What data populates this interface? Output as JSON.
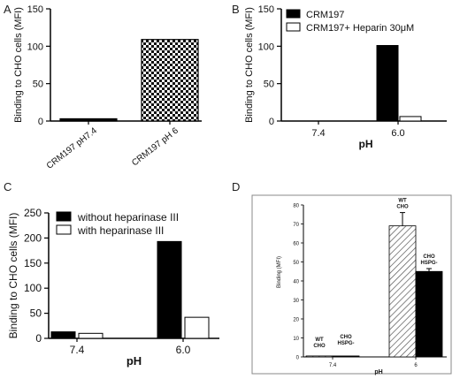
{
  "chart_data": [
    {
      "panel": "A",
      "type": "bar",
      "categories": [
        "CRM197 pH7.4",
        "CRM197 pH 6"
      ],
      "values": [
        3,
        109
      ],
      "ylabel": "Binding to CHO cells (MFI)",
      "ylim": [
        0,
        150
      ],
      "yticks": [
        0,
        50,
        100,
        150
      ],
      "fills": [
        "black",
        "checkerboard"
      ],
      "legend": null,
      "grid": false
    },
    {
      "panel": "B",
      "type": "bar",
      "categories": [
        "7.4",
        "6.0"
      ],
      "xlabel": "pH",
      "ylabel": "Binding to CHO cells (MFI)",
      "ylim": [
        0,
        150
      ],
      "yticks": [
        0,
        50,
        100,
        150
      ],
      "series": [
        {
          "name": "CRM197",
          "values": [
            0,
            101
          ],
          "color": "#000000"
        },
        {
          "name": "CRM197+ Heparin 30μM",
          "values": [
            0,
            6
          ],
          "color": "#ffffff"
        }
      ],
      "legend": "top-left",
      "grid": false
    },
    {
      "panel": "C",
      "type": "bar",
      "categories": [
        "7.4",
        "6.0"
      ],
      "xlabel": "pH",
      "ylabel": "Binding to CHO cells (MFI)",
      "ylim": [
        0,
        250
      ],
      "yticks": [
        0,
        50,
        100,
        150,
        200,
        250
      ],
      "series": [
        {
          "name": "without heparinase III",
          "values": [
            13,
            193
          ],
          "color": "#000000"
        },
        {
          "name": "with heparinase III",
          "values": [
            10,
            42
          ],
          "color": "#ffffff"
        }
      ],
      "legend": "top-left",
      "grid": false
    },
    {
      "panel": "D",
      "type": "bar",
      "categories": [
        "7.4",
        "6"
      ],
      "xlabel": "pH",
      "ylabel": "Binding (MFI)",
      "ylim": [
        0,
        80
      ],
      "yticks": [
        0,
        10,
        20,
        30,
        40,
        50,
        60,
        70,
        80
      ],
      "series": [
        {
          "name": "WT CHO",
          "values": [
            0.5,
            69
          ],
          "errors": [
            0,
            7
          ],
          "color": "hatched"
        },
        {
          "name": "CHO HSPG-",
          "values": [
            0.5,
            45
          ],
          "errors": [
            0,
            1.5
          ],
          "color": "#000000"
        }
      ],
      "annotations": [
        {
          "text": [
            "WT",
            "CHO"
          ],
          "category": 0,
          "series": 0
        },
        {
          "text": [
            "CHO",
            "HSPG-"
          ],
          "category": 0,
          "series": 1
        },
        {
          "text": [
            "WT",
            "CHO"
          ],
          "category": 1,
          "series": 0
        },
        {
          "text": [
            "CHO",
            "HSPG-"
          ],
          "category": 1,
          "series": 1
        }
      ],
      "legend": null,
      "grid": false
    }
  ]
}
